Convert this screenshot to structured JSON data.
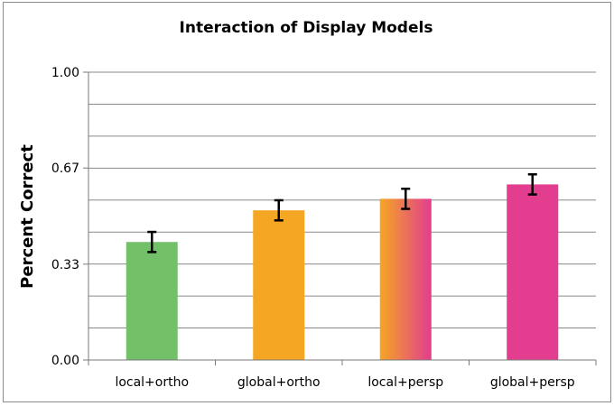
{
  "chart_data": {
    "type": "bar",
    "title": "Interaction of Display Models",
    "xlabel": "",
    "ylabel": "Percent Correct",
    "ylim": [
      0,
      1
    ],
    "yticks": [
      "0.00",
      "0.33",
      "0.67",
      "1.00"
    ],
    "ytick_values": [
      0,
      0.333,
      0.667,
      1.0
    ],
    "grid": true,
    "legend": false,
    "categories": [
      "local+ortho",
      "global+ortho",
      "local+persp",
      "global+persp"
    ],
    "values": [
      0.41,
      0.52,
      0.56,
      0.61
    ],
    "error": [
      0.035,
      0.035,
      0.035,
      0.035
    ],
    "colors": [
      "#72c169",
      "#f5a623",
      "gradient",
      "#e23d8f"
    ],
    "gradient_colors": [
      "#f5a623",
      "#e23d8f"
    ]
  }
}
